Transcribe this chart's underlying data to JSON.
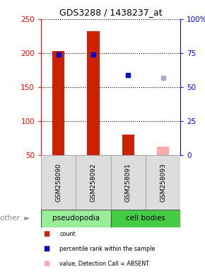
{
  "title": "GDS3288 / 1438237_at",
  "samples": [
    "GSM258090",
    "GSM258092",
    "GSM258091",
    "GSM258093"
  ],
  "groups": [
    "pseudopodia",
    "pseudopodia",
    "cell bodies",
    "cell bodies"
  ],
  "bar_values": [
    203,
    232,
    80,
    62
  ],
  "bar_colors": [
    "#cc2200",
    "#cc2200",
    "#cc2200",
    "#ffaaaa"
  ],
  "rank_values": [
    198,
    198,
    168,
    163
  ],
  "rank_colors": [
    "#0000cc",
    "#0000cc",
    "#0000cc",
    "#aaaacc"
  ],
  "ylim_left": [
    50,
    250
  ],
  "ylim_right": [
    0,
    100
  ],
  "yticks_left": [
    50,
    100,
    150,
    200,
    250
  ],
  "yticks_right": [
    0,
    25,
    50,
    75,
    100
  ],
  "ytick_labels_right": [
    "0",
    "25",
    "50",
    "75",
    "100%"
  ],
  "group_colors": [
    "#99ee99",
    "#44cc44"
  ],
  "group_labels": [
    "pseudopodia",
    "cell bodies"
  ],
  "bar_width": 0.35,
  "background_color": "#ffffff",
  "plot_bg": "#ffffff",
  "sample_label_bg": "#dddddd",
  "other_label": "other"
}
